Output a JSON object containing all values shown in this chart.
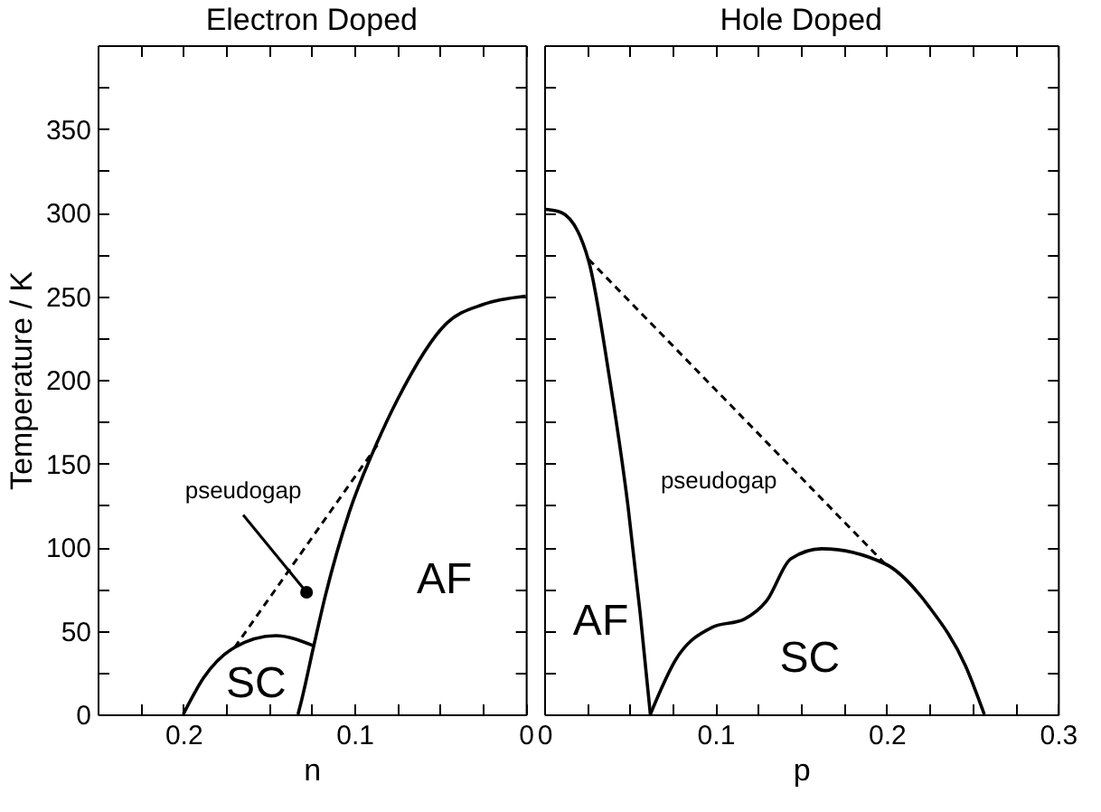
{
  "chart_data": [
    {
      "type": "line",
      "title": "Electron Doped",
      "xlabel": "n",
      "ylabel": "Temperature / K",
      "xlim": [
        0.25,
        0
      ],
      "ylim": [
        0,
        400
      ],
      "xticks": [
        {
          "value": 0.225,
          "label": null
        },
        0.2,
        {
          "value": 0.175,
          "label": null
        },
        {
          "value": 0.15,
          "label": null
        },
        {
          "value": 0.125,
          "label": null
        },
        0.1,
        {
          "value": 0.075,
          "label": null
        },
        {
          "value": 0.05,
          "label": null
        },
        {
          "value": 0.025,
          "label": null
        },
        0
      ],
      "yticks": [
        0,
        {
          "value": 25,
          "label": null
        },
        50,
        {
          "value": 75,
          "label": null
        },
        100,
        {
          "value": 125,
          "label": null
        },
        150,
        {
          "value": 175,
          "label": null
        },
        200,
        {
          "value": 225,
          "label": null
        },
        250,
        {
          "value": 275,
          "label": null
        },
        300,
        {
          "value": 325,
          "label": null
        },
        350,
        {
          "value": 375,
          "label": null
        }
      ],
      "series": [
        {
          "color": "#000000",
          "x": [
            0,
            0.025,
            0.046,
            0.075,
            0.087,
            0.103,
            0.117,
            0.124,
            0.131,
            0.133
          ],
          "values": [
            250,
            245,
            234,
            188,
            162,
            121,
            71,
            40,
            8,
            0
          ]
        },
        {
          "color": "#000000",
          "x": [
            0.2,
            0.188,
            0.17,
            0.146,
            0.124
          ],
          "values": [
            0,
            22,
            40,
            47,
            41
          ]
        },
        {
          "color": "#000000",
          "line_style": "dashed",
          "x": [
            0.17,
            0.086
          ],
          "values": [
            40,
            162
          ]
        },
        {
          "type": "scatter",
          "color": "#000000",
          "marker": "circle",
          "x": [
            0.128
          ],
          "values": [
            73
          ]
        }
      ],
      "annotations": [
        {
          "text": "pseudogap",
          "x": 0.128,
          "y": 73
        },
        "AF",
        "SC"
      ]
    },
    {
      "type": "line",
      "title": "Hole Doped",
      "xlabel": "p",
      "xlim": [
        0,
        0.3
      ],
      "ylim": [
        0,
        400
      ],
      "tick_labels": "x",
      "xticks": [
        0,
        {
          "value": 0.025,
          "label": null
        },
        {
          "value": 0.05,
          "label": null
        },
        {
          "value": 0.075,
          "label": null
        },
        0.1,
        {
          "value": 0.125,
          "label": null
        },
        {
          "value": 0.15,
          "label": null
        },
        {
          "value": 0.175,
          "label": null
        },
        0.2,
        {
          "value": 0.225,
          "label": null
        },
        {
          "value": 0.25,
          "label": null
        },
        {
          "value": 0.275,
          "label": null
        },
        0.3
      ],
      "yticks": [
        0,
        {
          "value": 25,
          "label": null
        },
        50,
        {
          "value": 75,
          "label": null
        },
        100,
        {
          "value": 125,
          "label": null
        },
        150,
        {
          "value": 175,
          "label": null
        },
        200,
        {
          "value": 225,
          "label": null
        },
        250,
        {
          "value": 275,
          "label": null
        },
        300,
        {
          "value": 325,
          "label": null
        },
        350,
        {
          "value": 375,
          "label": null
        }
      ],
      "series": [
        {
          "color": "#000000",
          "x": [
            0,
            0.01,
            0.026,
            0.038,
            0.049,
            0.056,
            0.062
          ],
          "values": [
            302,
            300,
            271,
            202,
            124,
            61,
            0
          ]
        },
        {
          "color": "#000000",
          "x": [
            0.062,
            0.077,
            0.098,
            0.117,
            0.13,
            0.144,
            0.162,
            0.199,
            0.225,
            0.246,
            0.257
          ],
          "values": [
            0,
            33,
            52,
            57,
            68,
            93,
            99,
            90,
            64,
            29,
            0
          ]
        },
        {
          "color": "#000000",
          "line_style": "dashed",
          "x": [
            0.026,
            0.199
          ],
          "values": [
            272,
            90
          ]
        }
      ],
      "annotations": [
        "pseudogap",
        "AF",
        "SC"
      ]
    }
  ]
}
